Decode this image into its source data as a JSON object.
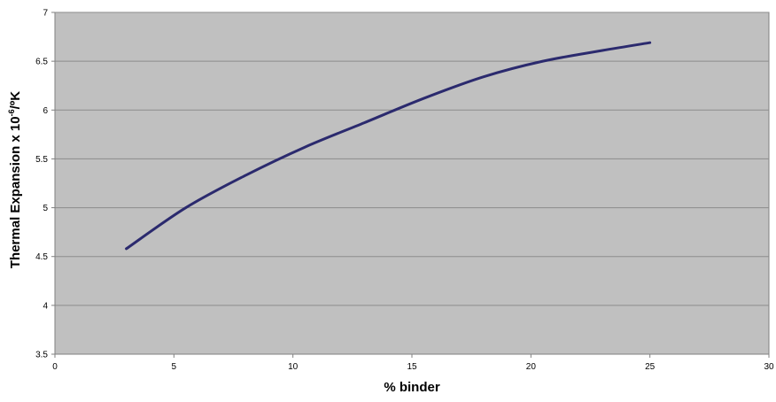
{
  "chart_data": {
    "type": "line",
    "title": "",
    "xlabel": "% binder",
    "ylabel_main": "Thermal Expansion x 10",
    "ylabel_sup": "-6",
    "ylabel_tail": "/ºK",
    "xlim": [
      0,
      30
    ],
    "ylim": [
      3.5,
      7
    ],
    "x_ticks": [
      "0",
      "5",
      "10",
      "15",
      "20",
      "25",
      "30"
    ],
    "y_ticks": [
      "3.5",
      "4",
      "4.5",
      "5",
      "5.5",
      "6",
      "6.5",
      "7"
    ],
    "grid": true,
    "legend": "none",
    "plot_background": "#c0c0c0",
    "gridline_color": "#8c8c8c",
    "series": [
      {
        "color": "#2b2a6e",
        "x": [
          3,
          5.5,
          8,
          10.5,
          13,
          15.5,
          18,
          20.5,
          23,
          25
        ],
        "y": [
          4.58,
          5.0,
          5.33,
          5.62,
          5.87,
          6.12,
          6.34,
          6.5,
          6.61,
          6.69
        ]
      }
    ]
  }
}
